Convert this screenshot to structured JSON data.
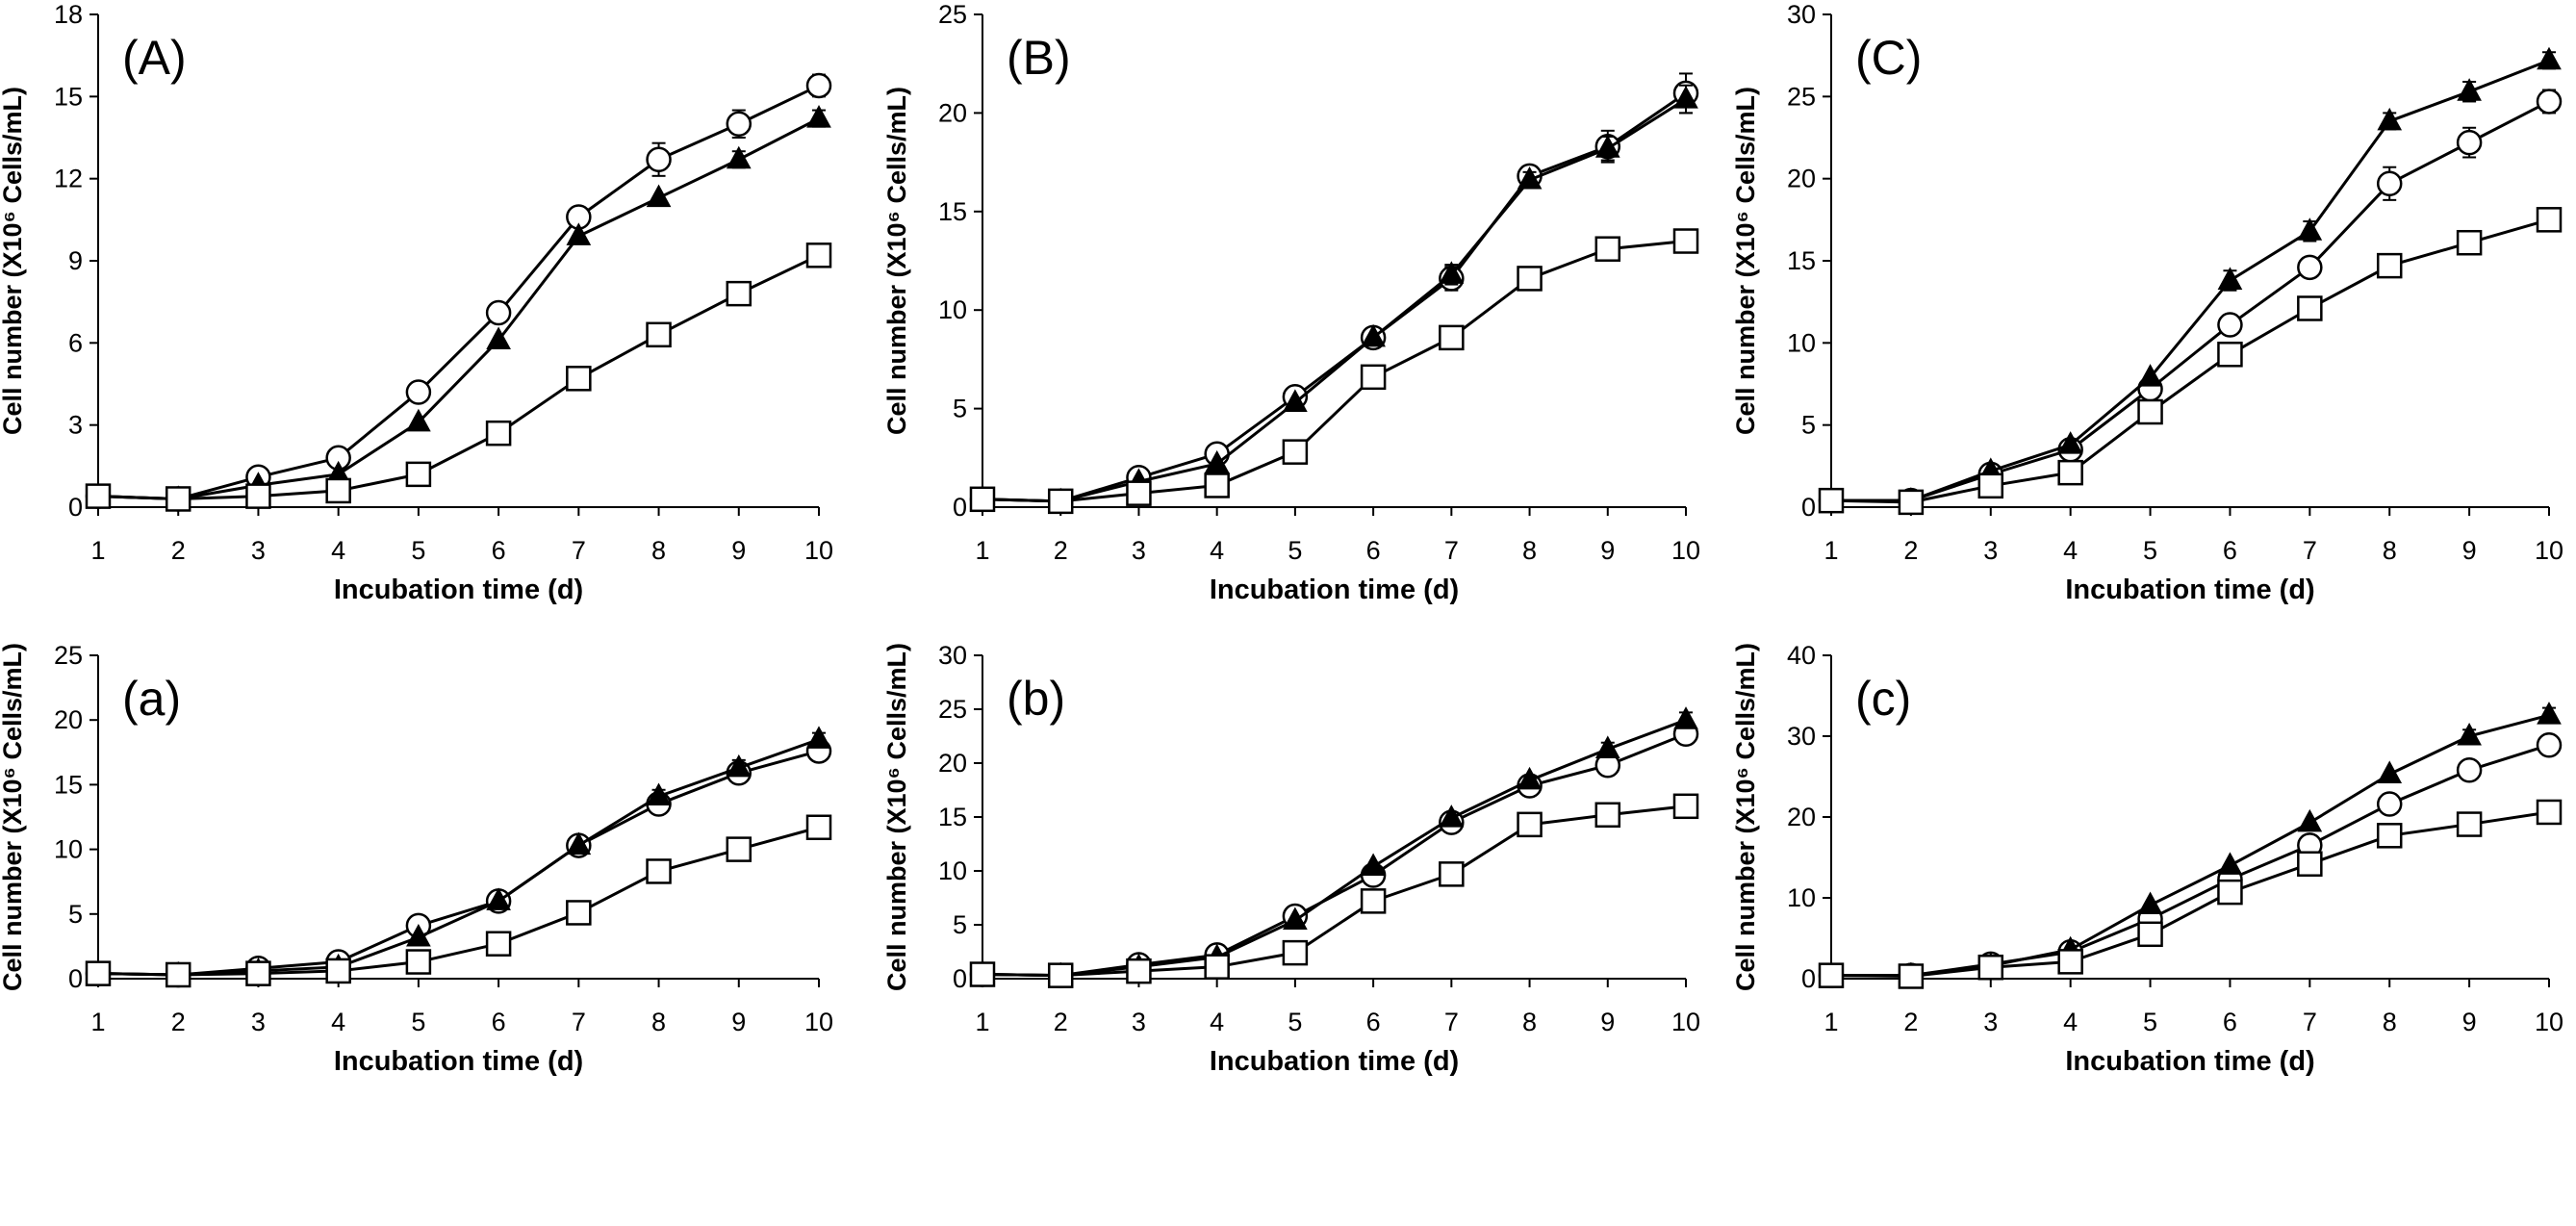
{
  "figure": {
    "panels": [
      {
        "label": "(A)"
      },
      {
        "label": "(B)"
      },
      {
        "label": "(C)"
      },
      {
        "label": "(a)"
      },
      {
        "label": "(b)"
      },
      {
        "label": "(c)"
      }
    ]
  },
  "chart_data": [
    {
      "type": "line",
      "panel_label": "(A)",
      "xlabel": "Incubation time (d)",
      "ylabel": "Cell number (X10⁶ Cells/mL)",
      "x": [
        1,
        2,
        3,
        4,
        5,
        6,
        7,
        8,
        9,
        10
      ],
      "xticks": [
        1,
        2,
        3,
        4,
        5,
        6,
        7,
        8,
        9,
        10
      ],
      "ylim": [
        0,
        18
      ],
      "yticks": [
        0,
        3,
        6,
        9,
        12,
        15,
        18
      ],
      "grid": false,
      "legend": "none",
      "series": [
        {
          "marker": "open-circle",
          "values": [
            0.4,
            0.3,
            1.1,
            1.8,
            4.2,
            7.1,
            10.6,
            12.7,
            14.0,
            15.4
          ],
          "errors": [
            0,
            0,
            0,
            0,
            0,
            0,
            0,
            0.6,
            0.5,
            0.4
          ]
        },
        {
          "marker": "filled-triangle",
          "values": [
            0.4,
            0.3,
            0.8,
            1.2,
            3.1,
            6.1,
            9.9,
            11.3,
            12.7,
            14.2
          ],
          "errors": [
            0,
            0,
            0,
            0,
            0,
            0,
            0,
            0,
            0.3,
            0.3
          ]
        },
        {
          "marker": "open-square",
          "values": [
            0.4,
            0.3,
            0.4,
            0.6,
            1.2,
            2.7,
            4.7,
            6.3,
            7.8,
            9.2
          ],
          "errors": [
            0,
            0,
            0,
            0,
            0,
            0,
            0,
            0,
            0,
            0
          ]
        }
      ]
    },
    {
      "type": "line",
      "panel_label": "(B)",
      "xlabel": "Incubation time (d)",
      "ylabel": "Cell number (X10⁶ Cells/mL)",
      "x": [
        1,
        2,
        3,
        4,
        5,
        6,
        7,
        8,
        9,
        10
      ],
      "xticks": [
        1,
        2,
        3,
        4,
        5,
        6,
        7,
        8,
        9,
        10
      ],
      "ylim": [
        0,
        25
      ],
      "yticks": [
        0,
        5,
        10,
        15,
        20,
        25
      ],
      "grid": false,
      "legend": "none",
      "series": [
        {
          "marker": "open-circle",
          "values": [
            0.4,
            0.3,
            1.5,
            2.7,
            5.6,
            8.6,
            11.6,
            16.8,
            18.3,
            21.0
          ],
          "errors": [
            0,
            0,
            0,
            0,
            0,
            0,
            0.6,
            0.5,
            0.8,
            1.0
          ]
        },
        {
          "marker": "filled-triangle",
          "values": [
            0.4,
            0.3,
            1.3,
            2.2,
            5.3,
            8.6,
            11.8,
            16.6,
            18.2,
            20.7
          ],
          "errors": [
            0,
            0,
            0,
            0,
            0,
            0,
            0.5,
            0.4,
            0.6,
            0.7
          ]
        },
        {
          "marker": "open-square",
          "values": [
            0.4,
            0.3,
            0.7,
            1.1,
            2.8,
            6.6,
            8.6,
            11.6,
            13.1,
            13.5
          ],
          "errors": [
            0,
            0,
            0,
            0,
            0,
            0,
            0,
            0,
            0,
            0
          ]
        }
      ]
    },
    {
      "type": "line",
      "panel_label": "(C)",
      "xlabel": "Incubation time (d)",
      "ylabel": "Cell number (X10⁶ Cells/mL)",
      "x": [
        1,
        2,
        3,
        4,
        5,
        6,
        7,
        8,
        9,
        10
      ],
      "xticks": [
        1,
        2,
        3,
        4,
        5,
        6,
        7,
        8,
        9,
        10
      ],
      "ylim": [
        0,
        30
      ],
      "yticks": [
        0,
        5,
        10,
        15,
        20,
        25,
        30
      ],
      "grid": false,
      "legend": "none",
      "series": [
        {
          "marker": "open-circle",
          "values": [
            0.4,
            0.4,
            2.0,
            3.5,
            7.2,
            11.1,
            14.6,
            19.7,
            22.2,
            24.7
          ],
          "errors": [
            0,
            0,
            0,
            0,
            0,
            0,
            0,
            1.0,
            0.9,
            0.7
          ]
        },
        {
          "marker": "filled-triangle",
          "values": [
            0.4,
            0.4,
            2.2,
            3.8,
            7.9,
            13.8,
            16.8,
            23.5,
            25.3,
            27.2
          ],
          "errors": [
            0,
            0,
            0,
            0,
            0,
            0.6,
            0.6,
            0.5,
            0.6,
            0.5
          ]
        },
        {
          "marker": "open-square",
          "values": [
            0.4,
            0.3,
            1.3,
            2.1,
            5.8,
            9.3,
            12.1,
            14.7,
            16.1,
            17.5
          ],
          "errors": [
            0,
            0,
            0,
            0,
            0,
            0,
            0,
            0,
            0,
            0
          ]
        }
      ]
    },
    {
      "type": "line",
      "panel_label": "(a)",
      "xlabel": "Incubation time (d)",
      "ylabel": "Cell number (X10⁶ Cells/mL)",
      "x": [
        1,
        2,
        3,
        4,
        5,
        6,
        7,
        8,
        9,
        10
      ],
      "xticks": [
        1,
        2,
        3,
        4,
        5,
        6,
        7,
        8,
        9,
        10
      ],
      "ylim": [
        0,
        25
      ],
      "yticks": [
        0,
        5,
        10,
        15,
        20,
        25
      ],
      "grid": false,
      "legend": "none",
      "series": [
        {
          "marker": "open-circle",
          "values": [
            0.4,
            0.3,
            0.8,
            1.3,
            4.1,
            6.0,
            10.3,
            13.5,
            15.9,
            17.6
          ],
          "errors": [
            0,
            0,
            0,
            0,
            0,
            0,
            0,
            0.4,
            0.5,
            0.5
          ]
        },
        {
          "marker": "filled-triangle",
          "values": [
            0.4,
            0.3,
            0.6,
            0.9,
            3.2,
            6.0,
            10.3,
            14.1,
            16.3,
            18.5
          ],
          "errors": [
            0,
            0,
            0,
            0,
            0,
            0,
            0,
            0.5,
            0.6,
            0.5
          ]
        },
        {
          "marker": "open-square",
          "values": [
            0.4,
            0.3,
            0.4,
            0.6,
            1.3,
            2.7,
            5.1,
            8.3,
            10.0,
            11.7
          ],
          "errors": [
            0,
            0,
            0,
            0,
            0,
            0,
            0,
            0,
            0,
            0
          ]
        }
      ]
    },
    {
      "type": "line",
      "panel_label": "(b)",
      "xlabel": "Incubation time (d)",
      "ylabel": "Cell number (X10⁶ Cells/mL)",
      "x": [
        1,
        2,
        3,
        4,
        5,
        6,
        7,
        8,
        9,
        10
      ],
      "xticks": [
        1,
        2,
        3,
        4,
        5,
        6,
        7,
        8,
        9,
        10
      ],
      "ylim": [
        0,
        30
      ],
      "yticks": [
        0,
        5,
        10,
        15,
        20,
        25,
        30
      ],
      "grid": false,
      "legend": "none",
      "series": [
        {
          "marker": "open-circle",
          "values": [
            0.4,
            0.3,
            1.3,
            2.2,
            5.8,
            9.6,
            14.5,
            17.9,
            19.8,
            22.7
          ],
          "errors": [
            0,
            0,
            0,
            0,
            0,
            0,
            0,
            0.4,
            0.6,
            0.6
          ]
        },
        {
          "marker": "filled-triangle",
          "values": [
            0.4,
            0.3,
            1.1,
            2.0,
            5.4,
            10.4,
            14.9,
            18.4,
            21.3,
            24.0
          ],
          "errors": [
            0,
            0,
            0,
            0,
            0,
            0,
            0,
            0.4,
            0.6,
            0.7
          ]
        },
        {
          "marker": "open-square",
          "values": [
            0.4,
            0.3,
            0.7,
            1.1,
            2.4,
            7.2,
            9.7,
            14.3,
            15.2,
            16.0
          ],
          "errors": [
            0,
            0,
            0,
            0,
            0,
            0,
            0,
            0,
            0,
            0
          ]
        }
      ]
    },
    {
      "type": "line",
      "panel_label": "(c)",
      "xlabel": "Incubation time (d)",
      "ylabel": "Cell number (X10⁶ Cells/mL)",
      "x": [
        1,
        2,
        3,
        4,
        5,
        6,
        7,
        8,
        9,
        10
      ],
      "xticks": [
        1,
        2,
        3,
        4,
        5,
        6,
        7,
        8,
        9,
        10
      ],
      "ylim": [
        0,
        40
      ],
      "yticks": [
        0,
        10,
        20,
        30,
        40
      ],
      "grid": false,
      "legend": "none",
      "series": [
        {
          "marker": "open-circle",
          "values": [
            0.4,
            0.4,
            1.8,
            3.3,
            7.4,
            12.3,
            16.5,
            21.6,
            25.8,
            28.9
          ],
          "errors": [
            0,
            0,
            0,
            0,
            0,
            0,
            0,
            0,
            0.7,
            0.8
          ]
        },
        {
          "marker": "filled-triangle",
          "values": [
            0.4,
            0.4,
            1.6,
            3.6,
            9.1,
            14.0,
            19.3,
            25.3,
            30.0,
            32.6
          ],
          "errors": [
            0,
            0,
            0,
            0,
            0,
            0,
            0,
            0,
            0.8,
            0.9
          ]
        },
        {
          "marker": "open-square",
          "values": [
            0.4,
            0.3,
            1.4,
            2.1,
            5.5,
            10.7,
            14.2,
            17.7,
            19.1,
            20.6
          ],
          "errors": [
            0,
            0,
            0,
            0,
            0,
            0,
            0,
            0,
            0,
            0
          ]
        }
      ]
    }
  ]
}
